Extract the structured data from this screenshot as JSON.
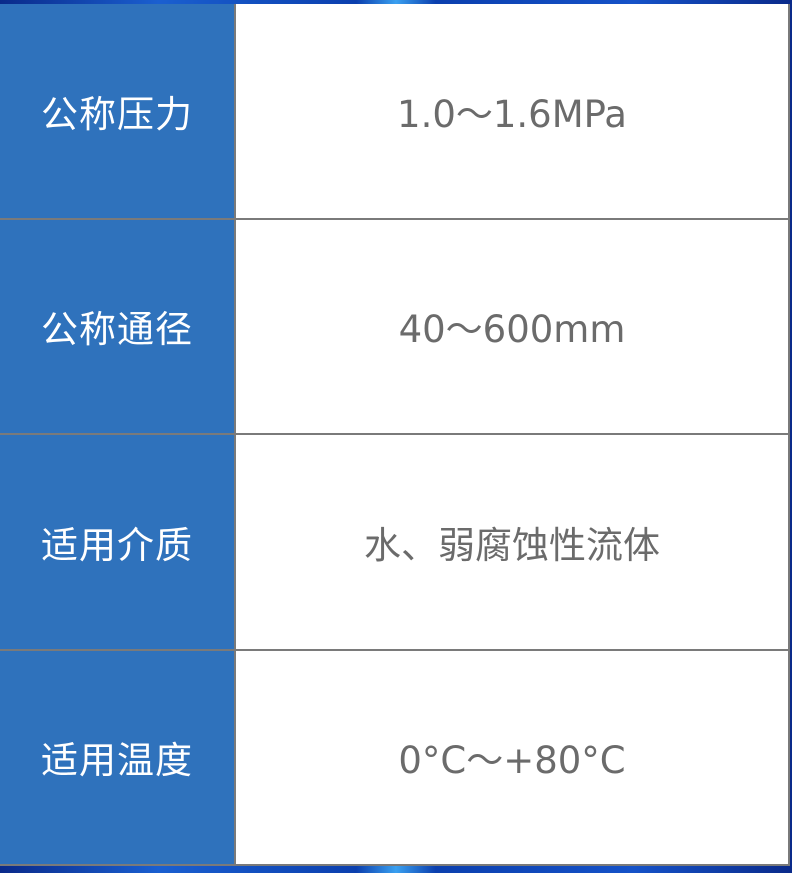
{
  "rows": [
    {
      "label": "公称压力",
      "value": "1.0～1.6MPa"
    },
    {
      "label": "公称通径",
      "value": "40～600mm"
    },
    {
      "label": "适用介质",
      "value": "水、弱腐蚀性流体"
    },
    {
      "label": "适用温度",
      "value": "0°C～+80°C"
    }
  ]
}
